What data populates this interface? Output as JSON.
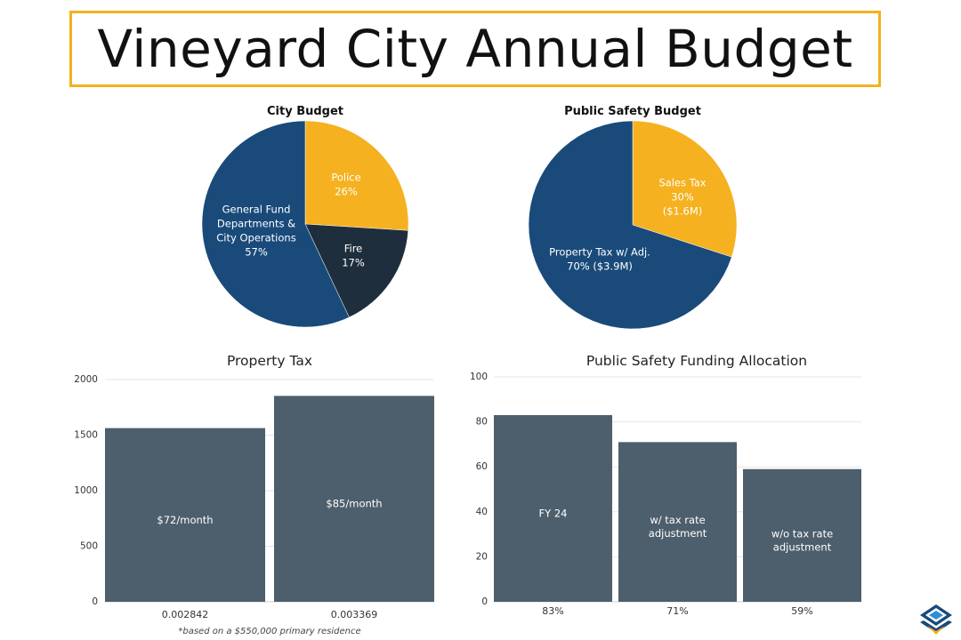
{
  "page": {
    "title": "Vineyard City Annual Budget",
    "footnote": "*based on a $550,000 primary residence"
  },
  "colors": {
    "navy": "#194a7a",
    "gold": "#f5b120",
    "dark": "#1f2e3c",
    "bar": "#4d5e6c",
    "accent_border": "#f2b11f",
    "grid": "#e2e2e2",
    "axis_text": "#333333"
  },
  "chart_data": [
    {
      "id": "city-budget",
      "type": "pie",
      "title": "City Budget",
      "slices": [
        {
          "name": "Police",
          "value": 26,
          "label_lines": [
            "Police",
            "26%"
          ],
          "color": "#f5b120",
          "text_color": "#ffffff"
        },
        {
          "name": "Fire",
          "value": 17,
          "label_lines": [
            "Fire",
            "17%"
          ],
          "color": "#1f2e3c",
          "text_color": "#ffffff"
        },
        {
          "name": "General Fund Departments & City Operations",
          "value": 57,
          "label_lines": [
            "General Fund",
            "Departments &",
            "City Operations",
            "57%"
          ],
          "color": "#194a7a",
          "text_color": "#ffffff"
        }
      ]
    },
    {
      "id": "public-safety-budget",
      "type": "pie",
      "title": "Public Safety Budget",
      "slices": [
        {
          "name": "Sales Tax",
          "value": 30,
          "label_lines": [
            "Sales Tax",
            "30%",
            "($1.6M)"
          ],
          "color": "#f5b120",
          "text_color": "#ffffff"
        },
        {
          "name": "Property Tax w/ Adj.",
          "value": 70,
          "label_lines": [
            "Property Tax w/ Adj.",
            "70% ($3.9M)"
          ],
          "color": "#194a7a",
          "text_color": "#ffffff"
        }
      ]
    },
    {
      "id": "property-tax",
      "type": "bar",
      "title": "Property Tax",
      "categories": [
        "0.002842",
        "0.003369"
      ],
      "values": [
        1563,
        1853
      ],
      "bar_labels": [
        [
          "$72/month"
        ],
        [
          "$85/month"
        ]
      ],
      "ylim": [
        0,
        2000
      ],
      "yticks": [
        0,
        500,
        1000,
        1500,
        2000
      ],
      "xlabel": "",
      "ylabel": ""
    },
    {
      "id": "public-safety-funding",
      "type": "bar",
      "title": "Public Safety Funding Allocation",
      "categories": [
        "83%",
        "71%",
        "59%"
      ],
      "values": [
        83,
        71,
        59
      ],
      "bar_labels": [
        [
          "FY 24"
        ],
        [
          "w/ tax rate",
          "adjustment"
        ],
        [
          "w/o tax rate",
          "adjustment"
        ]
      ],
      "ylim": [
        0,
        100
      ],
      "yticks": [
        0,
        20,
        40,
        60,
        80,
        100
      ],
      "xlabel": "",
      "ylabel": ""
    }
  ]
}
